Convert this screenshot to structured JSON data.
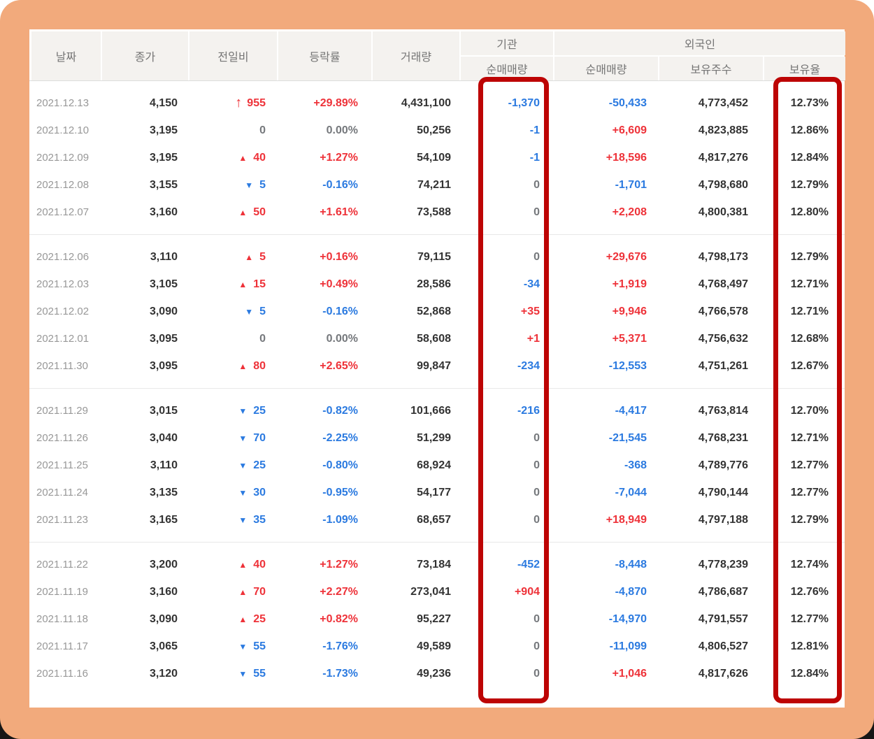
{
  "colors": {
    "page_background": "#f2aa7c",
    "card_background": "#ffffff",
    "header_background": "#f4f2ef",
    "header_text": "#757575",
    "date_text": "#989898",
    "number_text": "#333333",
    "up_red": "#ee3239",
    "down_blue": "#2b7ae0",
    "flat_gray": "#75787c",
    "highlight_red": "#bd0404"
  },
  "arrows": {
    "limitup": "↑",
    "up": "▲",
    "down": "▼",
    "flat": ""
  },
  "header": {
    "date": "날짜",
    "close": "종가",
    "change": "전일비",
    "rate": "등락률",
    "volume": "거래량",
    "inst_group": "기관",
    "frgn_group": "외국인",
    "inst_net": "순매매량",
    "frgn_net": "순매매량",
    "shares": "보유주수",
    "ratio": "보유율"
  },
  "highlights": [
    "institution-net-volume-column",
    "foreigner-holding-ratio-column"
  ],
  "table": {
    "groups": [
      [
        {
          "date": "2021.12.13",
          "close": "4,150",
          "dir": "limitup",
          "change": "955",
          "rate": "+29.89%",
          "volume": "4,431,100",
          "inst": "-1,370",
          "inst_tone": "neg",
          "frgn": "-50,433",
          "frgn_tone": "neg",
          "shares": "4,773,452",
          "ratio": "12.73%"
        },
        {
          "date": "2021.12.10",
          "close": "3,195",
          "dir": "flat",
          "change": "0",
          "rate": "0.00%",
          "volume": "50,256",
          "inst": "-1",
          "inst_tone": "neg",
          "frgn": "+6,609",
          "frgn_tone": "pos",
          "shares": "4,823,885",
          "ratio": "12.86%"
        },
        {
          "date": "2021.12.09",
          "close": "3,195",
          "dir": "up",
          "change": "40",
          "rate": "+1.27%",
          "volume": "54,109",
          "inst": "-1",
          "inst_tone": "neg",
          "frgn": "+18,596",
          "frgn_tone": "pos",
          "shares": "4,817,276",
          "ratio": "12.84%"
        },
        {
          "date": "2021.12.08",
          "close": "3,155",
          "dir": "down",
          "change": "5",
          "rate": "-0.16%",
          "volume": "74,211",
          "inst": "0",
          "inst_tone": "zero",
          "frgn": "-1,701",
          "frgn_tone": "neg",
          "shares": "4,798,680",
          "ratio": "12.79%"
        },
        {
          "date": "2021.12.07",
          "close": "3,160",
          "dir": "up",
          "change": "50",
          "rate": "+1.61%",
          "volume": "73,588",
          "inst": "0",
          "inst_tone": "zero",
          "frgn": "+2,208",
          "frgn_tone": "pos",
          "shares": "4,800,381",
          "ratio": "12.80%"
        }
      ],
      [
        {
          "date": "2021.12.06",
          "close": "3,110",
          "dir": "up",
          "change": "5",
          "rate": "+0.16%",
          "volume": "79,115",
          "inst": "0",
          "inst_tone": "zero",
          "frgn": "+29,676",
          "frgn_tone": "pos",
          "shares": "4,798,173",
          "ratio": "12.79%"
        },
        {
          "date": "2021.12.03",
          "close": "3,105",
          "dir": "up",
          "change": "15",
          "rate": "+0.49%",
          "volume": "28,586",
          "inst": "-34",
          "inst_tone": "neg",
          "frgn": "+1,919",
          "frgn_tone": "pos",
          "shares": "4,768,497",
          "ratio": "12.71%"
        },
        {
          "date": "2021.12.02",
          "close": "3,090",
          "dir": "down",
          "change": "5",
          "rate": "-0.16%",
          "volume": "52,868",
          "inst": "+35",
          "inst_tone": "pos",
          "frgn": "+9,946",
          "frgn_tone": "pos",
          "shares": "4,766,578",
          "ratio": "12.71%"
        },
        {
          "date": "2021.12.01",
          "close": "3,095",
          "dir": "flat",
          "change": "0",
          "rate": "0.00%",
          "volume": "58,608",
          "inst": "+1",
          "inst_tone": "pos",
          "frgn": "+5,371",
          "frgn_tone": "pos",
          "shares": "4,756,632",
          "ratio": "12.68%"
        },
        {
          "date": "2021.11.30",
          "close": "3,095",
          "dir": "up",
          "change": "80",
          "rate": "+2.65%",
          "volume": "99,847",
          "inst": "-234",
          "inst_tone": "neg",
          "frgn": "-12,553",
          "frgn_tone": "neg",
          "shares": "4,751,261",
          "ratio": "12.67%"
        }
      ],
      [
        {
          "date": "2021.11.29",
          "close": "3,015",
          "dir": "down",
          "change": "25",
          "rate": "-0.82%",
          "volume": "101,666",
          "inst": "-216",
          "inst_tone": "neg",
          "frgn": "-4,417",
          "frgn_tone": "neg",
          "shares": "4,763,814",
          "ratio": "12.70%"
        },
        {
          "date": "2021.11.26",
          "close": "3,040",
          "dir": "down",
          "change": "70",
          "rate": "-2.25%",
          "volume": "51,299",
          "inst": "0",
          "inst_tone": "zero",
          "frgn": "-21,545",
          "frgn_tone": "neg",
          "shares": "4,768,231",
          "ratio": "12.71%"
        },
        {
          "date": "2021.11.25",
          "close": "3,110",
          "dir": "down",
          "change": "25",
          "rate": "-0.80%",
          "volume": "68,924",
          "inst": "0",
          "inst_tone": "zero",
          "frgn": "-368",
          "frgn_tone": "neg",
          "shares": "4,789,776",
          "ratio": "12.77%"
        },
        {
          "date": "2021.11.24",
          "close": "3,135",
          "dir": "down",
          "change": "30",
          "rate": "-0.95%",
          "volume": "54,177",
          "inst": "0",
          "inst_tone": "zero",
          "frgn": "-7,044",
          "frgn_tone": "neg",
          "shares": "4,790,144",
          "ratio": "12.77%"
        },
        {
          "date": "2021.11.23",
          "close": "3,165",
          "dir": "down",
          "change": "35",
          "rate": "-1.09%",
          "volume": "68,657",
          "inst": "0",
          "inst_tone": "zero",
          "frgn": "+18,949",
          "frgn_tone": "pos",
          "shares": "4,797,188",
          "ratio": "12.79%"
        }
      ],
      [
        {
          "date": "2021.11.22",
          "close": "3,200",
          "dir": "up",
          "change": "40",
          "rate": "+1.27%",
          "volume": "73,184",
          "inst": "-452",
          "inst_tone": "neg",
          "frgn": "-8,448",
          "frgn_tone": "neg",
          "shares": "4,778,239",
          "ratio": "12.74%"
        },
        {
          "date": "2021.11.19",
          "close": "3,160",
          "dir": "up",
          "change": "70",
          "rate": "+2.27%",
          "volume": "273,041",
          "inst": "+904",
          "inst_tone": "pos",
          "frgn": "-4,870",
          "frgn_tone": "neg",
          "shares": "4,786,687",
          "ratio": "12.76%"
        },
        {
          "date": "2021.11.18",
          "close": "3,090",
          "dir": "up",
          "change": "25",
          "rate": "+0.82%",
          "volume": "95,227",
          "inst": "0",
          "inst_tone": "zero",
          "frgn": "-14,970",
          "frgn_tone": "neg",
          "shares": "4,791,557",
          "ratio": "12.77%"
        },
        {
          "date": "2021.11.17",
          "close": "3,065",
          "dir": "down",
          "change": "55",
          "rate": "-1.76%",
          "volume": "49,589",
          "inst": "0",
          "inst_tone": "zero",
          "frgn": "-11,099",
          "frgn_tone": "neg",
          "shares": "4,806,527",
          "ratio": "12.81%"
        },
        {
          "date": "2021.11.16",
          "close": "3,120",
          "dir": "down",
          "change": "55",
          "rate": "-1.73%",
          "volume": "49,236",
          "inst": "0",
          "inst_tone": "zero",
          "frgn": "+1,046",
          "frgn_tone": "pos",
          "shares": "4,817,626",
          "ratio": "12.84%"
        }
      ]
    ]
  }
}
